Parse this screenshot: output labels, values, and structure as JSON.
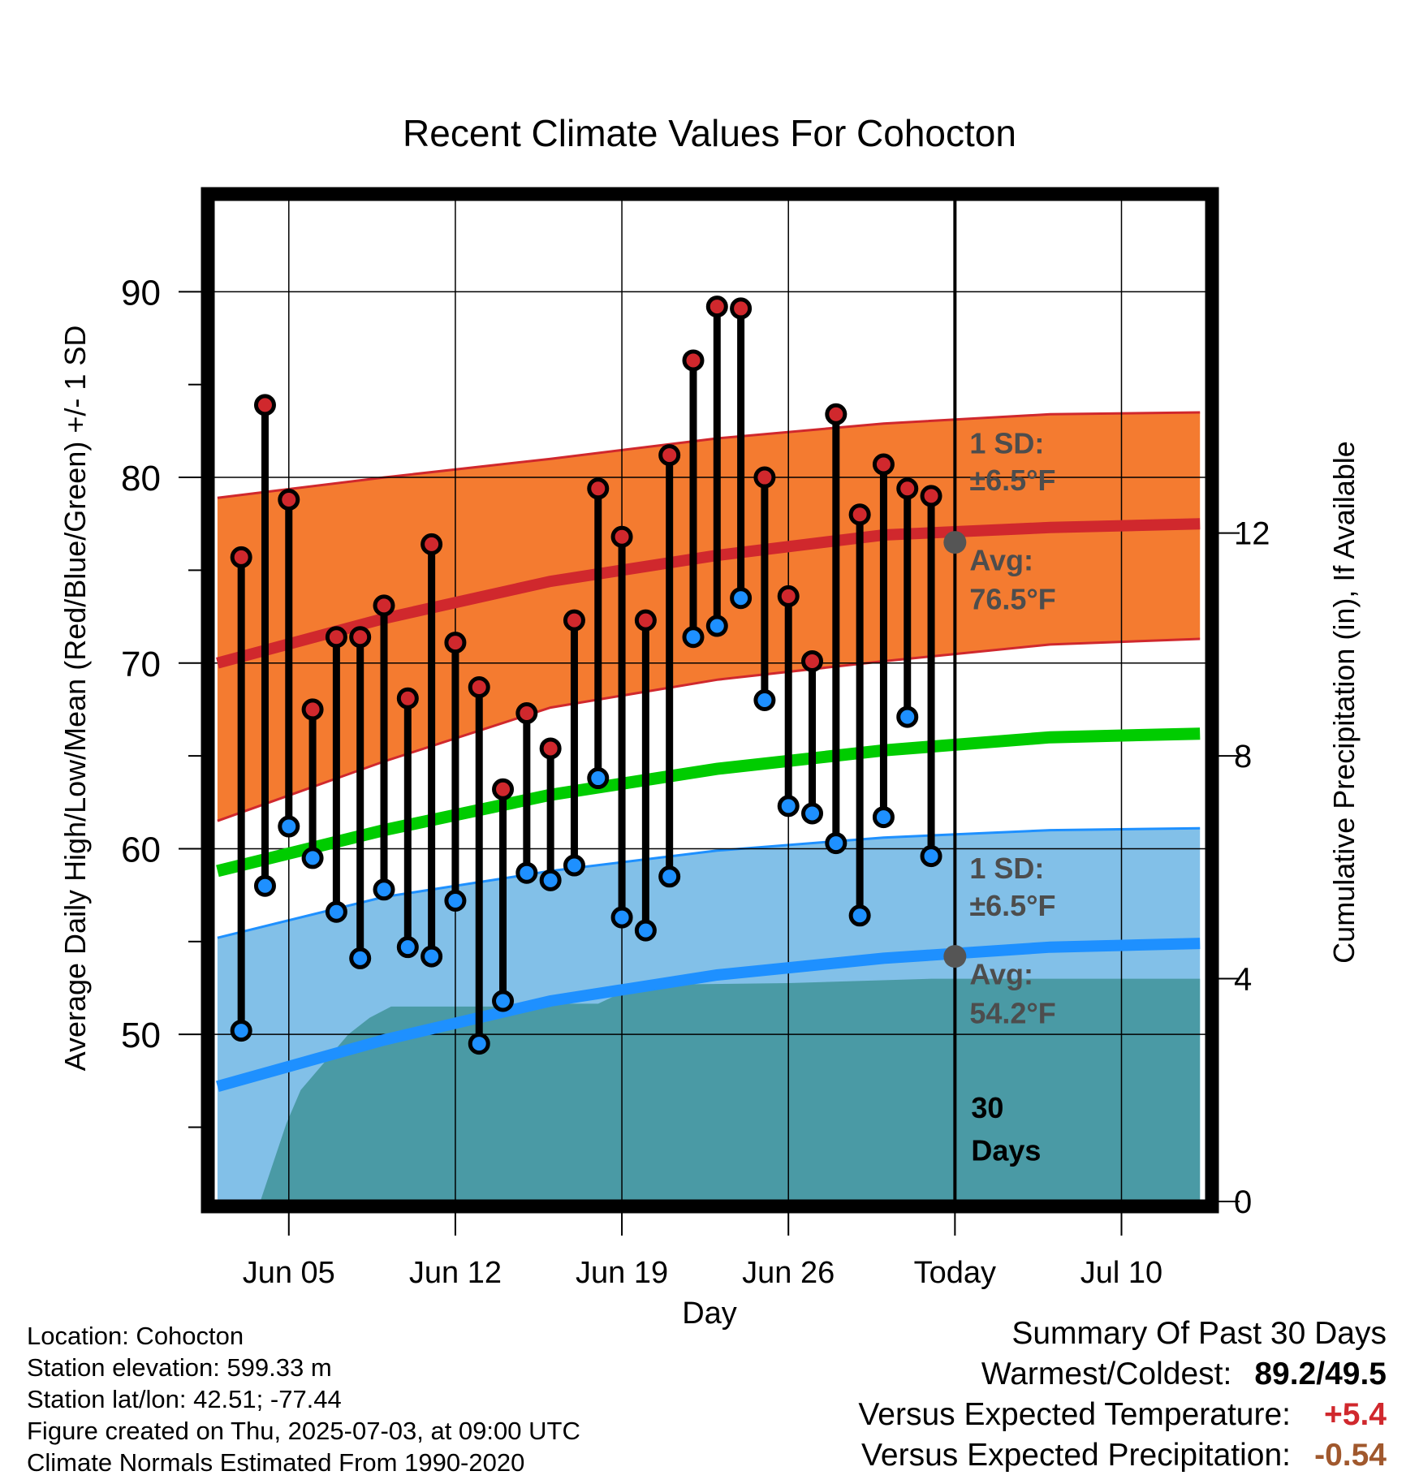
{
  "chart_data": {
    "type": "line",
    "title": "Recent Climate Values For Cohocton",
    "xlabel": "Day",
    "ylabel": "Average Daily High/Low/Mean (Red/Blue/Green) +/- 1 SD",
    "y2label": "Cumulative Precipitation (in), If Available",
    "ylim": [
      41,
      95
    ],
    "y2lim": [
      0,
      18
    ],
    "xlim": [
      -0.2,
      41.6
    ],
    "x_tick_labels": [
      {
        "day": 3,
        "label": "Jun 05"
      },
      {
        "day": 10,
        "label": "Jun 12"
      },
      {
        "day": 17,
        "label": "Jun 19"
      },
      {
        "day": 24,
        "label": "Jun 26"
      },
      {
        "day": 31,
        "label": "Today"
      },
      {
        "day": 38,
        "label": "Jul 10"
      }
    ],
    "y_ticks": [
      50,
      60,
      70,
      80,
      90
    ],
    "y2_ticks": [
      0,
      4,
      8,
      12
    ],
    "grid": true,
    "days": [
      1,
      2,
      3,
      4,
      5,
      6,
      7,
      8,
      9,
      10,
      11,
      12,
      13,
      14,
      15,
      16,
      17,
      18,
      19,
      20,
      21,
      22,
      23,
      24,
      25,
      26,
      27,
      28,
      29,
      30
    ],
    "series": [
      {
        "name": "High",
        "color": "#d0282d",
        "values": [
          75.7,
          83.9,
          78.8,
          67.5,
          71.4,
          71.4,
          73.1,
          68.1,
          76.4,
          71.1,
          68.7,
          63.2,
          67.3,
          65.4,
          72.3,
          79.4,
          76.8,
          72.3,
          81.2,
          86.3,
          89.2,
          89.1,
          80.0,
          73.6,
          70.1,
          83.4,
          78.0,
          80.7,
          79.4,
          79.0
        ]
      },
      {
        "name": "Low",
        "color": "#1e90ff",
        "values": [
          50.2,
          58.0,
          61.2,
          59.5,
          56.6,
          54.1,
          57.8,
          54.7,
          54.2,
          57.2,
          49.5,
          51.8,
          58.7,
          58.3,
          59.1,
          63.8,
          56.3,
          55.6,
          58.5,
          71.4,
          72.0,
          73.5,
          68.0,
          62.3,
          61.9,
          60.3,
          56.4,
          61.7,
          67.1,
          59.6
        ]
      },
      {
        "name": "Normal High",
        "color": "#d0282d",
        "x": [
          0,
          7,
          14,
          21,
          28,
          35,
          41.3
        ],
        "values": [
          70.0,
          72.4,
          74.4,
          75.8,
          76.9,
          77.3,
          77.5
        ]
      },
      {
        "name": "Normal High +1 SD",
        "x": [
          0,
          7,
          14,
          21,
          28,
          35,
          41.3
        ],
        "values": [
          78.9,
          80.0,
          81.0,
          82.1,
          82.9,
          83.4,
          83.5
        ]
      },
      {
        "name": "Normal High -1 SD",
        "x": [
          0,
          7,
          14,
          21,
          28,
          35,
          41.3
        ],
        "values": [
          61.5,
          64.7,
          67.6,
          69.1,
          70.1,
          71.0,
          71.3
        ]
      },
      {
        "name": "Normal Mean",
        "color": "#00cc00",
        "x": [
          0,
          7,
          14,
          21,
          28,
          35,
          41.3
        ],
        "values": [
          58.8,
          61.0,
          62.9,
          64.3,
          65.3,
          66.0,
          66.2
        ]
      },
      {
        "name": "Normal Low",
        "color": "#1e90ff",
        "x": [
          0,
          7,
          14,
          21,
          28,
          35,
          41.3
        ],
        "values": [
          47.2,
          49.7,
          51.8,
          53.2,
          54.1,
          54.7,
          54.9
        ]
      },
      {
        "name": "Normal Low +1 SD",
        "x": [
          0,
          7,
          14,
          21,
          28,
          35,
          41.3
        ],
        "values": [
          55.2,
          57.4,
          58.8,
          59.9,
          60.6,
          61.0,
          61.1
        ]
      },
      {
        "name": "Normal Low -1 SD",
        "x": [
          0,
          41.3
        ],
        "values": [
          41,
          41
        ]
      },
      {
        "name": "Cumulative Precipitation",
        "color": "#4a9aa5",
        "x": [
          1.8,
          2.9,
          3.5,
          4.5,
          5.5,
          6.4,
          7.3,
          9,
          10,
          11,
          12,
          14,
          15,
          16,
          17,
          20,
          24,
          30,
          31,
          41.3
        ],
        "values": [
          0,
          1.4,
          2.0,
          2.5,
          3.0,
          3.3,
          3.5,
          3.5,
          3.5,
          3.5,
          3.5,
          3.55,
          3.55,
          3.55,
          3.75,
          3.9,
          3.92,
          4.0,
          4.0,
          4.0
        ]
      }
    ],
    "annotations": {
      "high_sd": "1 SD:",
      "high_sd_value": "±6.5°F",
      "high_avg": "Avg:",
      "high_avg_value": "76.5°F",
      "low_sd": "1 SD:",
      "low_sd_value": "±6.5°F",
      "low_avg": "Avg:",
      "low_avg_value": "54.2°F",
      "days_number": "30",
      "days_word": "Days"
    }
  },
  "info": {
    "location": "Location: Cohocton",
    "elevation": "Station elevation: 599.33 m",
    "latlon": "Station lat/lon: 42.51; -77.44",
    "created": "Figure created on Thu, 2025-07-03, at 09:00 UTC",
    "normals": "Climate Normals Estimated From 1990-2020"
  },
  "summary": {
    "title": "Summary Of Past 30 Days",
    "warmest_label": "Warmest/Coldest:",
    "warmest_value": "89.2/49.5",
    "temp_label": "Versus Expected Temperature:",
    "temp_value": "+5.4",
    "precip_label": "Versus Expected Precipitation:",
    "precip_value": "-0.54"
  },
  "colors": {
    "high": "#d0282d",
    "high_band": "#f47b30",
    "low": "#1e90ff",
    "low_band": "#82c0e8",
    "mean": "#00cc00",
    "precip": "#4a9aa5",
    "annotation": "#4d4d4d"
  }
}
